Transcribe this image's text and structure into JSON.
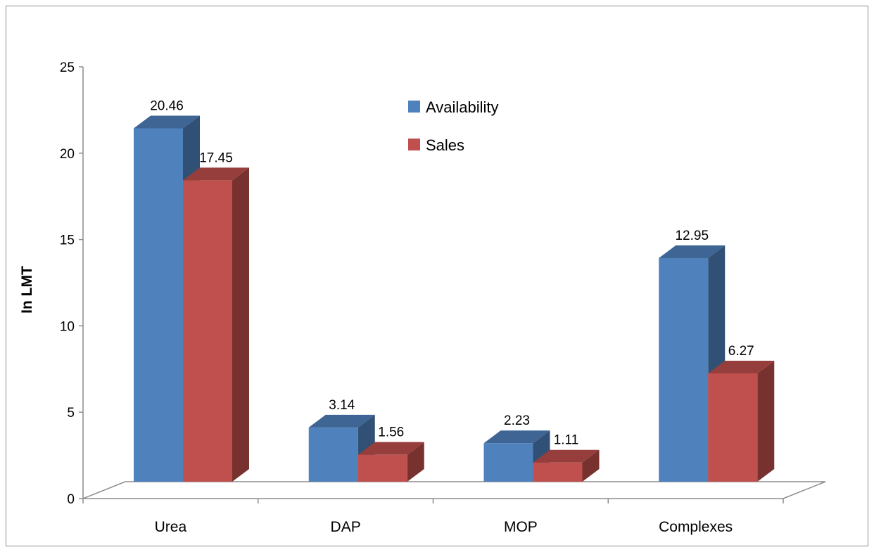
{
  "chart_data": {
    "type": "bar",
    "categories": [
      "Urea",
      "DAP",
      "MOP",
      "Complexes"
    ],
    "series": [
      {
        "name": "Availability",
        "values": [
          20.46,
          3.14,
          2.23,
          12.95
        ],
        "color": "#4f81bd"
      },
      {
        "name": "Sales",
        "values": [
          17.45,
          1.56,
          1.11,
          6.27
        ],
        "color": "#c0504d"
      }
    ],
    "data_labels": {
      "Availability": [
        "20.46",
        "3.14",
        "2.23",
        "12.95"
      ],
      "Sales": [
        "17.45",
        "1.56",
        "1.11",
        "6.27"
      ]
    },
    "ylabel": "In LMT",
    "ylim": [
      0,
      25
    ],
    "yticks": [
      "0",
      "5",
      "10",
      "15",
      "20",
      "25"
    ],
    "legend_position": "top-center",
    "style": "3d-clustered-column"
  }
}
